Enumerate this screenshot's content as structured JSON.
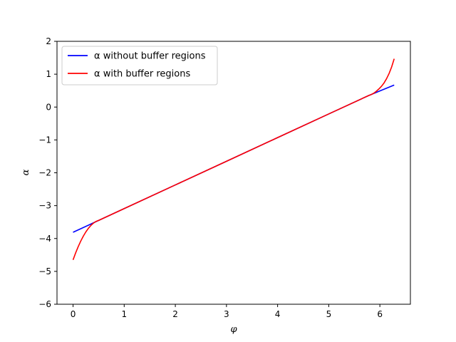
{
  "chart_data": {
    "type": "line",
    "xlabel": "φ",
    "ylabel": "α",
    "xlim": [
      -0.314,
      6.597
    ],
    "ylim": [
      -6,
      2
    ],
    "xticks": [
      0,
      1,
      2,
      3,
      4,
      5,
      6
    ],
    "yticks": [
      -6,
      -5,
      -4,
      -3,
      -2,
      -1,
      0,
      1,
      2
    ],
    "grid": false,
    "legend_position": "upper-left",
    "series": [
      {
        "name": "α without buffer regions",
        "color": "#0000ff",
        "x": [
          0,
          0.5,
          1,
          2,
          3,
          4,
          5,
          5.78,
          6.28
        ],
        "y": [
          -3.81,
          -3.45,
          -3.09,
          -2.37,
          -1.65,
          -0.93,
          -0.21,
          0.35,
          0.67
        ]
      },
      {
        "name": "α with buffer regions",
        "color": "#ff0000",
        "x": [
          0,
          0.05,
          0.1,
          0.15,
          0.2,
          0.25,
          0.3,
          0.35,
          0.4,
          0.45,
          0.5,
          1,
          2,
          3,
          4,
          5,
          5.78,
          5.83,
          5.88,
          5.93,
          5.98,
          6.03,
          6.08,
          6.13,
          6.18,
          6.23,
          6.28
        ],
        "y": [
          -4.65,
          -4.44,
          -4.25,
          -4.08,
          -3.93,
          -3.8,
          -3.69,
          -3.6,
          -3.53,
          -3.48,
          -3.45,
          -3.09,
          -2.37,
          -1.65,
          -0.93,
          -0.21,
          0.35,
          0.38,
          0.42,
          0.48,
          0.55,
          0.63,
          0.73,
          0.86,
          1.02,
          1.22,
          1.47
        ]
      }
    ]
  }
}
